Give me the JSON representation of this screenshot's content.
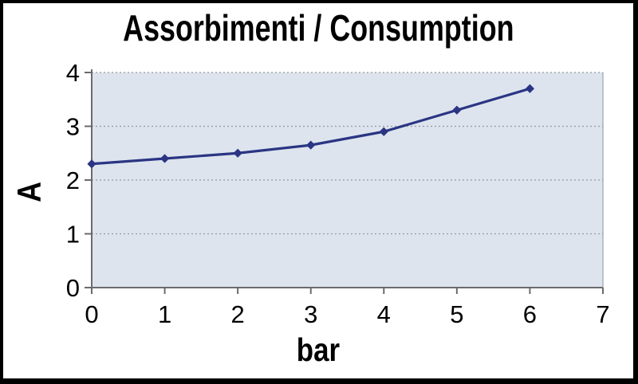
{
  "figure": {
    "background_color": "#ffffff",
    "border_color": "#000000"
  },
  "chart": {
    "title": "Assorbimenti / Consumption",
    "y_axis_label": "A",
    "x_axis_label": "bar"
  },
  "chart_data": {
    "type": "line",
    "title": "Assorbimenti / Consumption",
    "xlabel": "bar",
    "ylabel": "A",
    "x": [
      0,
      1,
      2,
      3,
      4,
      5,
      6
    ],
    "y": [
      2.3,
      2.4,
      2.5,
      2.65,
      2.9,
      3.3,
      3.7
    ],
    "xlim": [
      0,
      7
    ],
    "ylim": [
      0,
      4
    ],
    "x_ticks": [
      0,
      1,
      2,
      3,
      4,
      5,
      6,
      7
    ],
    "y_ticks": [
      0,
      1,
      2,
      3,
      4
    ],
    "grid": "horizontal-dotted",
    "legend": "none",
    "marker": "diamond",
    "line_color": "#2b3583",
    "marker_color": "#2b3583",
    "plot_bg_color": "#dde4ee",
    "gridline_color": "#999999",
    "axis_color": "#6b6b6b",
    "plot_right_edge_color": "#aab2c0"
  }
}
